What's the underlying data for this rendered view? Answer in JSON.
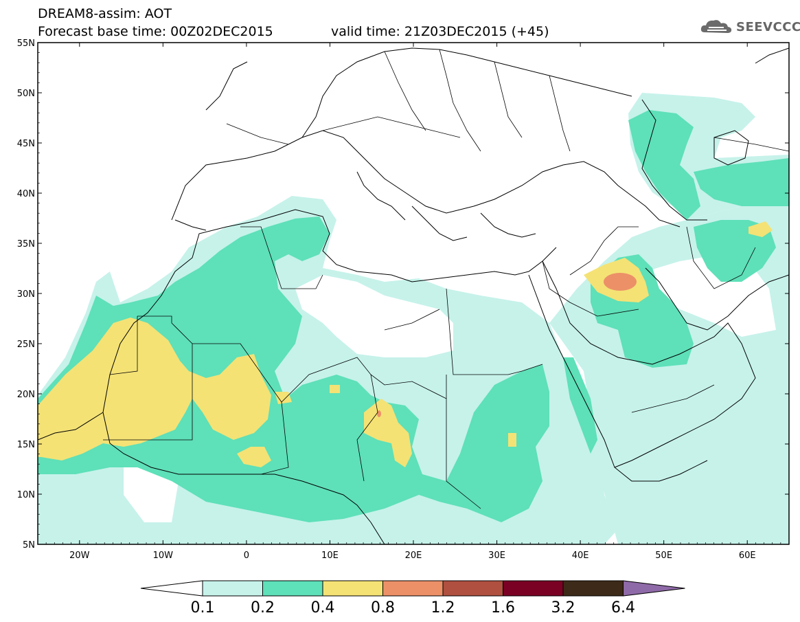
{
  "header": {
    "model_line": "DREAM8-assim: AOT",
    "base_time": "Forecast base time: 00Z02DEC2015",
    "valid_time": "valid time: 21Z03DEC2015 (+45)"
  },
  "logo": {
    "text": "SEEVCCC",
    "icon": "cloud-icon"
  },
  "map": {
    "lat_labels": [
      "55N",
      "50N",
      "45N",
      "40N",
      "35N",
      "30N",
      "25N",
      "20N",
      "15N",
      "10N",
      "5N"
    ],
    "lon_labels": [
      "20W",
      "10W",
      "0",
      "10E",
      "20E",
      "30E",
      "40E",
      "50E",
      "60E"
    ],
    "lon_range": [
      -25,
      65
    ],
    "lat_range": [
      5,
      55
    ]
  },
  "colorbar": {
    "levels": [
      "0.1",
      "0.2",
      "0.4",
      "0.8",
      "1.2",
      "1.6",
      "3.2",
      "6.4"
    ],
    "colors": [
      "#ffffff",
      "#c6f2ea",
      "#5ee0b8",
      "#f4e275",
      "#ec9068",
      "#b05040",
      "#7a0024",
      "#3d2a18",
      "#8f6aa8"
    ]
  }
}
